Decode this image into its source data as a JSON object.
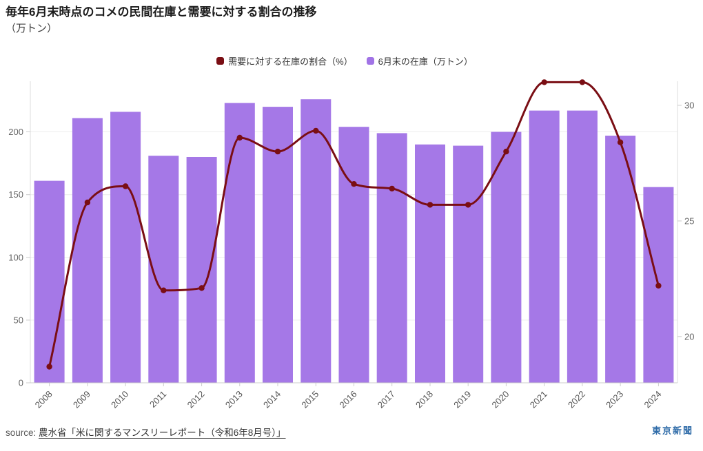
{
  "header": {
    "title": "毎年6月末時点のコメの民間在庫と需要に対する割合の推移",
    "subtitle": "（万トン）"
  },
  "legend": [
    {
      "label": "需要に対する在庫の割合（%）",
      "color": "#7a0e14"
    },
    {
      "label": "6月末の在庫（万トン）",
      "color": "#a173e6"
    }
  ],
  "chart_data": {
    "type": "bar",
    "title": "毎年6月末時点のコメの民間在庫と需要に対する割合の推移",
    "subtitle_unit": "（万トン）",
    "categories": [
      "2008",
      "2009",
      "2010",
      "2011",
      "2012",
      "2013",
      "2014",
      "2015",
      "2016",
      "2017",
      "2018",
      "2019",
      "2020",
      "2021",
      "2022",
      "2023",
      "2024"
    ],
    "series": [
      {
        "name": "6月末の在庫（万トン）",
        "type": "bar",
        "axis": "left",
        "color": "#a578e7",
        "values": [
          161,
          211,
          216,
          181,
          180,
          223,
          220,
          226,
          204,
          199,
          190,
          189,
          200,
          217,
          217,
          197,
          156
        ]
      },
      {
        "name": "需要に対する在庫の割合（%）",
        "type": "line",
        "axis": "right",
        "color": "#7a0e14",
        "values": [
          18.7,
          25.8,
          26.5,
          22.0,
          22.1,
          28.6,
          28.0,
          28.9,
          26.6,
          26.4,
          25.7,
          25.7,
          28.0,
          31.0,
          31.0,
          28.4,
          22.2
        ]
      }
    ],
    "left_axis": {
      "ticks": [
        0,
        50,
        100,
        150,
        200
      ],
      "min": 0,
      "max": 242
    },
    "right_axis": {
      "ticks": [
        20,
        25,
        30
      ],
      "min": 18.0,
      "max": 31.13
    },
    "grid": "horizontal",
    "legend_position": "top",
    "axis_text_color": "#666666",
    "grid_color": "#ececec"
  },
  "footer": {
    "source_prefix": "source:",
    "source_link": "農水省「米に関するマンスリーレポート（令和6年8月号）」",
    "logo": "東京新聞"
  }
}
